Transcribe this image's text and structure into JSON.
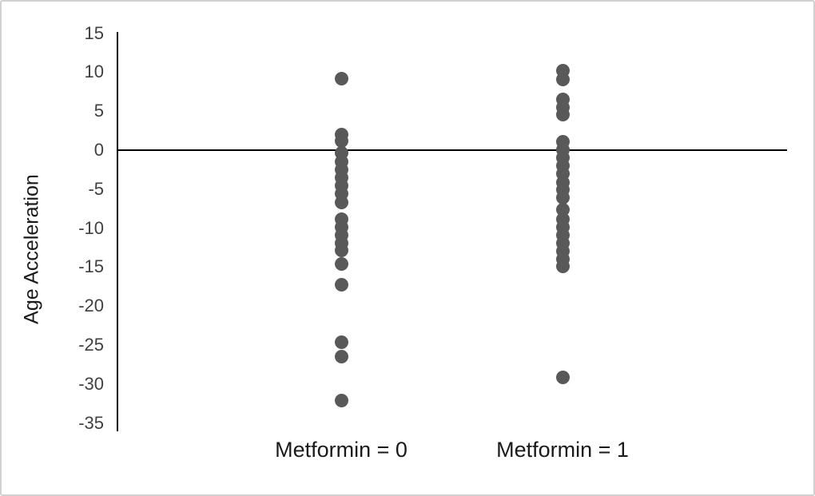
{
  "figure": {
    "background": "#ffffff",
    "border_color": "#d0d0d0"
  },
  "colors": {
    "marker": "#595959",
    "axis": "#000000",
    "tick_label": "#404040",
    "text": "#1a1a1a"
  },
  "chart_data": {
    "type": "scatter",
    "subtype": "strip-plot",
    "title": "",
    "xlabel": "",
    "ylabel": "Age Acceleration",
    "ylim": [
      -35,
      15
    ],
    "yticks": [
      15,
      10,
      5,
      0,
      -5,
      -10,
      -15,
      -20,
      -25,
      -30,
      -35
    ],
    "grid": false,
    "legend": false,
    "zero_line": true,
    "categories": [
      "Metformin = 0",
      "Metformin = 1"
    ],
    "series": [
      {
        "name": "Metformin = 0",
        "values": [
          9.2,
          2.0,
          1.2,
          -0.4,
          -1.5,
          -2.5,
          -3.5,
          -4.6,
          -5.6,
          -6.7,
          -8.9,
          -9.9,
          -10.9,
          -11.9,
          -12.9,
          -14.6,
          -17.3,
          -24.6,
          -26.5,
          -32.1
        ]
      },
      {
        "name": "Metformin = 1",
        "values": [
          10.2,
          9.1,
          6.5,
          5.5,
          4.6,
          1.1,
          0.1,
          -1.0,
          -2.0,
          -3.0,
          -4.1,
          -5.1,
          -6.1,
          -7.6,
          -8.9,
          -9.9,
          -10.9,
          -11.9,
          -13.0,
          -14.0,
          -14.9,
          -29.1
        ]
      }
    ]
  }
}
